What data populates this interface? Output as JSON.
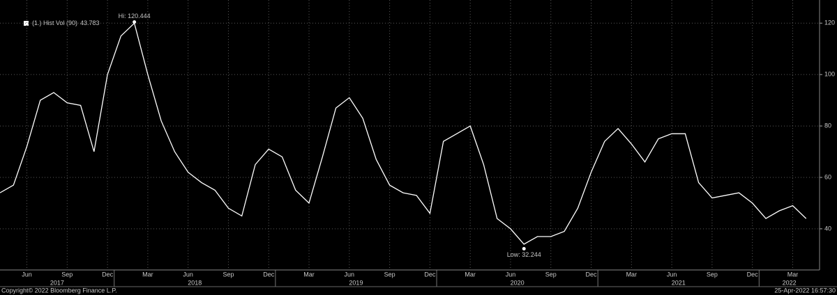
{
  "chart_data": {
    "type": "line",
    "x": [
      "2017-04",
      "2017-05",
      "2017-06",
      "2017-07",
      "2017-08",
      "2017-09",
      "2017-10",
      "2017-11",
      "2017-12",
      "2018-01",
      "2018-02",
      "2018-03",
      "2018-04",
      "2018-05",
      "2018-06",
      "2018-07",
      "2018-08",
      "2018-09",
      "2018-10",
      "2018-11",
      "2018-12",
      "2019-01",
      "2019-02",
      "2019-03",
      "2019-04",
      "2019-05",
      "2019-06",
      "2019-07",
      "2019-08",
      "2019-09",
      "2019-10",
      "2019-11",
      "2019-12",
      "2020-01",
      "2020-02",
      "2020-03",
      "2020-04",
      "2020-05",
      "2020-06",
      "2020-07",
      "2020-08",
      "2020-09",
      "2020-10",
      "2020-11",
      "2020-12",
      "2021-01",
      "2021-02",
      "2021-03",
      "2021-04",
      "2021-05",
      "2021-06",
      "2021-07",
      "2021-08",
      "2021-09",
      "2021-10",
      "2021-11",
      "2021-12",
      "2022-01",
      "2022-02",
      "2022-03",
      "2022-04"
    ],
    "series": [
      {
        "name": "(1.) Hist Vol (90)",
        "last_value": 43.783,
        "color": "#ffffff",
        "values": [
          54,
          57,
          72,
          90,
          93,
          89,
          88,
          70,
          100,
          115,
          120,
          100,
          82,
          70,
          62,
          58,
          55,
          48,
          45,
          65,
          71,
          68,
          55,
          50,
          68,
          87,
          91,
          83,
          67,
          57,
          54,
          53,
          46,
          74,
          77,
          80,
          65,
          44,
          40,
          34,
          37,
          37,
          39,
          48,
          62,
          74,
          79,
          73,
          66,
          75,
          77,
          77,
          58,
          52,
          53,
          54,
          50,
          44,
          47,
          49,
          44
        ]
      }
    ],
    "annotations": [
      {
        "label": "Hi: 120.444",
        "value": 120.444,
        "x": "2018-02"
      },
      {
        "label": "Low: 32.244",
        "value": 32.244,
        "x": "2020-07"
      }
    ],
    "xlim": [
      "2017-04",
      "2022-05"
    ],
    "xticks": [
      {
        "value": "2017-06",
        "label": "Jun"
      },
      {
        "value": "2017-09",
        "label": "Sep"
      },
      {
        "value": "2017-12",
        "label": "Dec"
      },
      {
        "value": "2018-03",
        "label": "Mar"
      },
      {
        "value": "2018-06",
        "label": "Jun"
      },
      {
        "value": "2018-09",
        "label": "Sep"
      },
      {
        "value": "2018-12",
        "label": "Dec"
      },
      {
        "value": "2019-03",
        "label": "Mar"
      },
      {
        "value": "2019-06",
        "label": "Jun"
      },
      {
        "value": "2019-09",
        "label": "Sep"
      },
      {
        "value": "2019-12",
        "label": "Dec"
      },
      {
        "value": "2020-03",
        "label": "Mar"
      },
      {
        "value": "2020-06",
        "label": "Jun"
      },
      {
        "value": "2020-09",
        "label": "Sep"
      },
      {
        "value": "2020-12",
        "label": "Dec"
      },
      {
        "value": "2021-03",
        "label": "Mar"
      },
      {
        "value": "2021-06",
        "label": "Jun"
      },
      {
        "value": "2021-09",
        "label": "Sep"
      },
      {
        "value": "2021-12",
        "label": "Dec"
      },
      {
        "value": "2022-03",
        "label": "Mar"
      }
    ],
    "year_labels": [
      "2017",
      "2018",
      "2019",
      "2020",
      "2021",
      "2022"
    ],
    "ylim": [
      24,
      129
    ],
    "yticks": [
      40,
      60,
      80,
      100,
      120
    ],
    "grid": true,
    "footer_left": "Copyright© 2022 Bloomberg Finance L.P.",
    "footer_right": "25-Apr-2022 16:57:30"
  }
}
